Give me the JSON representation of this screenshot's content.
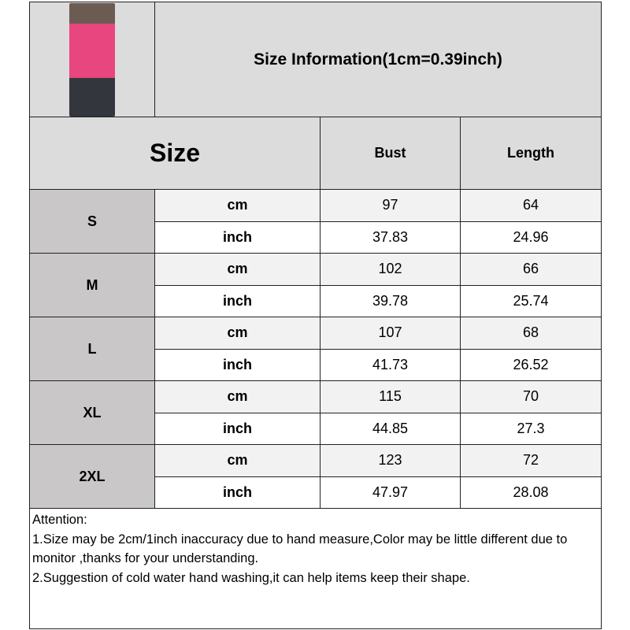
{
  "title": "Size Information(1cm=0.39inch)",
  "header": {
    "size": "Size",
    "bust": "Bust",
    "length": "Length"
  },
  "sizes": [
    {
      "name": "S",
      "cm": {
        "unit": "cm",
        "bust": "97",
        "length": "64"
      },
      "inch": {
        "unit": "inch",
        "bust": "37.83",
        "length": "24.96"
      }
    },
    {
      "name": "M",
      "cm": {
        "unit": "cm",
        "bust": "102",
        "length": "66"
      },
      "inch": {
        "unit": "inch",
        "bust": "39.78",
        "length": "25.74"
      }
    },
    {
      "name": "L",
      "cm": {
        "unit": "cm",
        "bust": "107",
        "length": "68"
      },
      "inch": {
        "unit": "inch",
        "bust": "41.73",
        "length": "26.52"
      }
    },
    {
      "name": "XL",
      "cm": {
        "unit": "cm",
        "bust": "115",
        "length": "70"
      },
      "inch": {
        "unit": "inch",
        "bust": "44.85",
        "length": "27.3"
      }
    },
    {
      "name": "2XL",
      "cm": {
        "unit": "cm",
        "bust": "123",
        "length": "72"
      },
      "inch": {
        "unit": "inch",
        "bust": "47.97",
        "length": "28.08"
      }
    }
  ],
  "notes": [
    "Attention:",
    "1.Size may be 2cm/1inch inaccuracy due to hand measure,Color may be little different due to monitor ,thanks for your understanding.",
    "2.Suggestion of cold water hand washing,it can help items keep their shape."
  ]
}
